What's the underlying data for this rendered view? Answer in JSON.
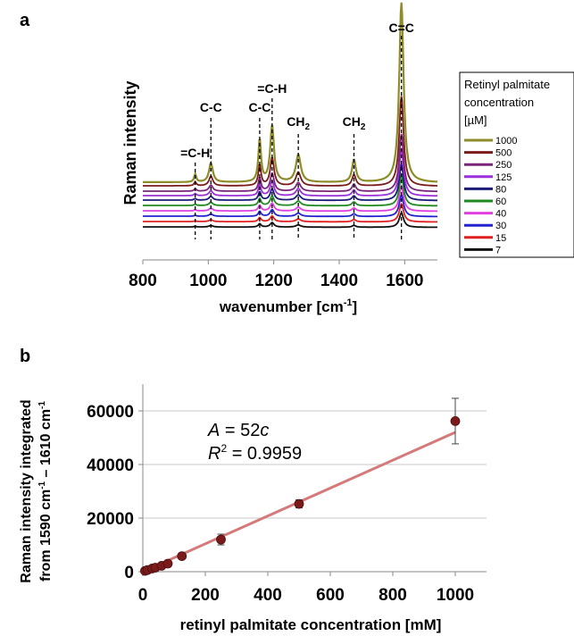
{
  "panels": {
    "a": {
      "letter": "a",
      "chart_data": {
        "type": "line",
        "xlabel": "wavenumber [cm",
        "xlabel_sup": "-1",
        "xlabel_end": "]",
        "ylabel": "Raman intensity",
        "xlim": [
          800,
          1700
        ],
        "x_ticks": [
          "800",
          "1000",
          "1200",
          "1400",
          "1600"
        ],
        "legend": {
          "position": "right",
          "title_lines": [
            "Retinyl palmitate",
            "concentration",
            "[µM]"
          ],
          "entries": [
            {
              "label": "1000",
              "color": "#8c8c28"
            },
            {
              "label": "500",
              "color": "#7b1a1a"
            },
            {
              "label": "250",
              "color": "#7a247a"
            },
            {
              "label": "125",
              "color": "#9b30d8"
            },
            {
              "label": "80",
              "color": "#1c1c78"
            },
            {
              "label": "60",
              "color": "#1f8a1f"
            },
            {
              "label": "40",
              "color": "#e03ee0"
            },
            {
              "label": "30",
              "color": "#2222d0"
            },
            {
              "label": "15",
              "color": "#e02020"
            },
            {
              "label": "7",
              "color": "#111111"
            }
          ]
        },
        "peaks": [
          {
            "label": "=C-H",
            "x": 960
          },
          {
            "label": "C-C",
            "x": 1008
          },
          {
            "label": "C-C",
            "x": 1157
          },
          {
            "label": "=C-H",
            "x": 1195
          },
          {
            "label": "CH",
            "sub": "2",
            "x": 1275
          },
          {
            "label": "CH",
            "sub": "2",
            "x": 1445
          },
          {
            "label": "C=C",
            "x": 1590
          }
        ],
        "series_scale": [
          1.0,
          0.5,
          0.32,
          0.26,
          0.2,
          0.17,
          0.14,
          0.12,
          0.1,
          0.08
        ]
      }
    },
    "b": {
      "letter": "b",
      "chart_data": {
        "type": "scatter",
        "xlabel": "retinyl palmitate concentration [mM]",
        "ylabel_line1": "Raman intensity integrated",
        "ylabel_line2_parts": [
          "from 1590 cm",
          "-1",
          " – 1610 cm",
          "-1"
        ],
        "xlim": [
          0,
          1100
        ],
        "ylim": [
          0,
          70000
        ],
        "x_ticks": [
          0,
          200,
          400,
          600,
          800,
          1000
        ],
        "y_ticks": [
          0,
          20000,
          40000,
          60000
        ],
        "grid": true,
        "points": [
          {
            "x": 7,
            "y": 300,
            "err": 0
          },
          {
            "x": 15,
            "y": 600,
            "err": 0
          },
          {
            "x": 30,
            "y": 1200,
            "err": 0
          },
          {
            "x": 40,
            "y": 1500,
            "err": 0
          },
          {
            "x": 60,
            "y": 2200,
            "err": 0
          },
          {
            "x": 80,
            "y": 3000,
            "err": 0
          },
          {
            "x": 125,
            "y": 5800,
            "err": 0
          },
          {
            "x": 250,
            "y": 12000,
            "err": 2000
          },
          {
            "x": 500,
            "y": 25300,
            "err": 1500
          },
          {
            "x": 1000,
            "y": 56200,
            "err": 8500
          }
        ],
        "fit": {
          "slope": 52,
          "intercept": 0
        },
        "annotation_eq": {
          "var": "A",
          "mid": " = 52",
          "var2": "c"
        },
        "annotation_r2": {
          "var": "R",
          "sup": "2",
          "rest": " = 0.9959"
        },
        "point_color": "#7b1a1a",
        "fit_color": "#d47a7a"
      }
    }
  }
}
